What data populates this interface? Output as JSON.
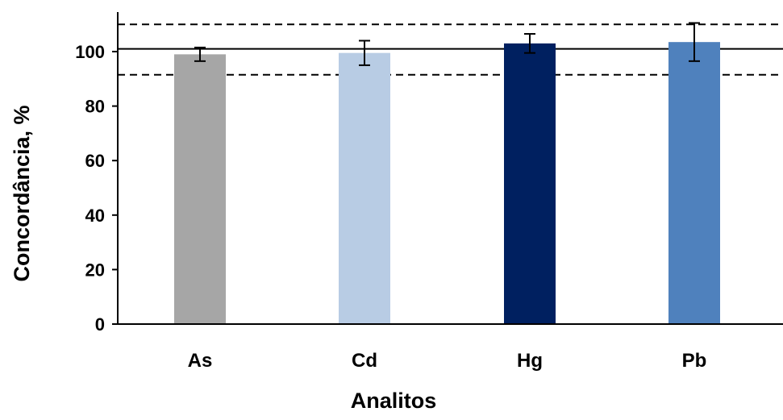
{
  "chart_data": {
    "type": "bar",
    "title": "",
    "xlabel": "Analitos",
    "ylabel": "Concordância, %",
    "categories": [
      "As",
      "Cd",
      "Hg",
      "Pb"
    ],
    "series": [
      {
        "values": [
          99,
          99.5,
          103,
          103.5
        ],
        "errors": [
          2.5,
          4.5,
          3.5,
          7
        ],
        "colors": [
          "#a6a6a6",
          "#b8cce4",
          "#002060",
          "#4f81bd"
        ]
      }
    ],
    "ylim": [
      0,
      115
    ],
    "yticks": [
      0,
      20,
      40,
      60,
      80,
      100
    ],
    "reference_lines": [
      {
        "value": 101,
        "style": "solid"
      },
      {
        "value": 110,
        "style": "dashed"
      },
      {
        "value": 91.5,
        "style": "dashed"
      }
    ],
    "grid": false,
    "legend": "none"
  }
}
